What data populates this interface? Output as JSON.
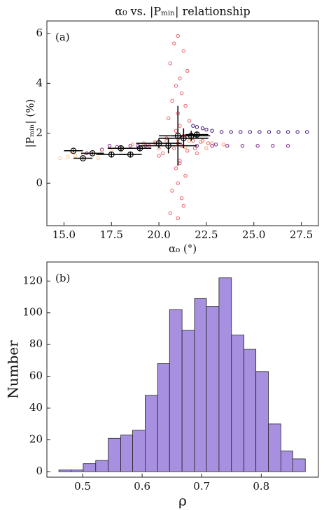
{
  "chart_data": [
    {
      "type": "scatter",
      "title": "α₀ vs. |Pₘᵢₙ| relationship",
      "annotation": "(a)",
      "x_label": "α₀ (°)",
      "y_label": "|Pₘᵢₙ| (%)",
      "xlim": [
        14.1,
        28.4
      ],
      "ylim": [
        -1.7,
        6.5
      ],
      "xticks": [
        {
          "value": 15,
          "label": "15.0"
        },
        17.5,
        {
          "value": 20,
          "label": "20.0"
        },
        22.5,
        {
          "value": 25,
          "label": "25.0"
        },
        27.5
      ],
      "yticks": [
        0,
        2,
        4,
        6
      ],
      "series": [
        {
          "color": "#e8606a",
          "x": [
            21.0,
            20.8,
            21.3,
            20.6,
            21.5,
            21.1,
            20.9,
            21.2,
            20.7,
            21.4,
            21.0,
            20.5,
            21.6,
            21.1,
            20.9,
            21.3,
            20.4,
            21.8,
            21.0,
            21.2,
            20.8,
            21.5,
            19.8,
            22.3,
            20.2,
            21.9,
            19.5,
            22.6,
            20.0,
            22.0,
            21.1,
            20.9,
            21.4,
            21.0,
            20.7,
            21.2,
            21.3,
            20.6,
            21.0,
            21.1
          ],
          "values": [
            5.9,
            5.6,
            5.3,
            4.8,
            4.5,
            4.2,
            3.9,
            3.6,
            3.3,
            3.1,
            2.8,
            2.6,
            2.5,
            2.3,
            2.1,
            1.9,
            1.8,
            1.7,
            1.6,
            1.5,
            1.4,
            1.3,
            1.6,
            1.7,
            1.2,
            1.4,
            1.5,
            1.6,
            1.1,
            1.2,
            0.9,
            0.6,
            0.3,
            0.0,
            -0.3,
            -0.6,
            -0.9,
            -1.2,
            -1.4,
            0.8
          ]
        },
        {
          "color": "#3b0f70",
          "x": [
            21.8,
            22.3,
            22.8,
            23.3,
            23.8,
            24.3,
            24.8,
            25.3,
            25.8,
            26.3,
            26.8,
            27.3,
            27.8,
            22.0,
            22.5
          ],
          "values": [
            2.3,
            2.2,
            2.1,
            2.05,
            2.05,
            2.05,
            2.05,
            2.05,
            2.05,
            2.05,
            2.05,
            2.05,
            2.05,
            2.25,
            2.15
          ]
        },
        {
          "color": "#7b2382",
          "x": [
            16.2,
            17.0,
            17.8,
            18.5,
            19.3,
            22.0,
            22.8,
            23.6,
            24.4,
            25.2,
            26.0,
            26.8,
            17.4,
            18.9,
            23.0
          ],
          "values": [
            1.2,
            1.35,
            1.45,
            1.5,
            1.5,
            1.5,
            1.5,
            1.5,
            1.5,
            1.5,
            1.5,
            1.5,
            1.5,
            1.5,
            1.55
          ]
        },
        {
          "color": "#f8906a",
          "x": [
            19.2,
            19.8,
            20.4,
            21.0,
            21.6,
            22.2,
            22.8,
            23.4,
            20.0,
            21.4,
            22.5,
            18.6
          ],
          "values": [
            1.6,
            1.65,
            1.7,
            1.75,
            1.7,
            1.65,
            1.6,
            1.55,
            1.4,
            1.45,
            1.4,
            1.55
          ]
        },
        {
          "color": "#fdc48f",
          "x": [
            14.8,
            15.2,
            15.6,
            16.0,
            16.5,
            17.0,
            17.5,
            18.0,
            15.4,
            16.8
          ],
          "values": [
            1.0,
            1.05,
            1.1,
            1.15,
            1.2,
            1.25,
            1.3,
            1.3,
            1.25,
            1.0
          ]
        },
        {
          "color": "#000000",
          "x": [
            15.5,
            16.0,
            16.5,
            17.5,
            18.0,
            18.5,
            19.0,
            20.0,
            20.5,
            21.0,
            21.3,
            21.7,
            22.0
          ],
          "values": [
            1.3,
            1.0,
            1.2,
            1.15,
            1.4,
            1.15,
            1.4,
            1.6,
            1.5,
            1.9,
            1.8,
            1.9,
            1.95
          ],
          "xerr": [
            0.5,
            0.5,
            0.6,
            0.8,
            0.7,
            0.6,
            0.6,
            1.2,
            1.5,
            1.0,
            1.3,
            1.0,
            0.6
          ],
          "yerr": [
            0.05,
            0.05,
            0.05,
            0.1,
            0.1,
            0.1,
            0.1,
            0.2,
            0.3,
            1.2,
            0.4,
            0.2,
            0.1
          ]
        }
      ]
    },
    {
      "type": "histogram",
      "annotation": "(b)",
      "x_label": "ρ",
      "y_label": "Number",
      "color": "#a890e0",
      "bins": [
        0.46,
        0.481,
        0.501,
        0.522,
        0.543,
        0.564,
        0.584,
        0.605,
        0.626,
        0.646,
        0.667,
        0.688,
        0.708,
        0.729,
        0.75,
        0.771,
        0.791,
        0.812,
        0.833,
        0.853,
        0.874
      ],
      "values": [
        1,
        1,
        5,
        7,
        21,
        23,
        26,
        48,
        68,
        102,
        89,
        109,
        104,
        122,
        86,
        77,
        63,
        30,
        13,
        8
      ],
      "xlim": [
        0.44,
        0.896
      ],
      "ylim": [
        -3.5,
        132
      ],
      "xticks": [
        0.5,
        0.6,
        0.7,
        0.8
      ],
      "yticks": [
        0,
        20,
        40,
        60,
        80,
        100,
        120
      ]
    }
  ]
}
